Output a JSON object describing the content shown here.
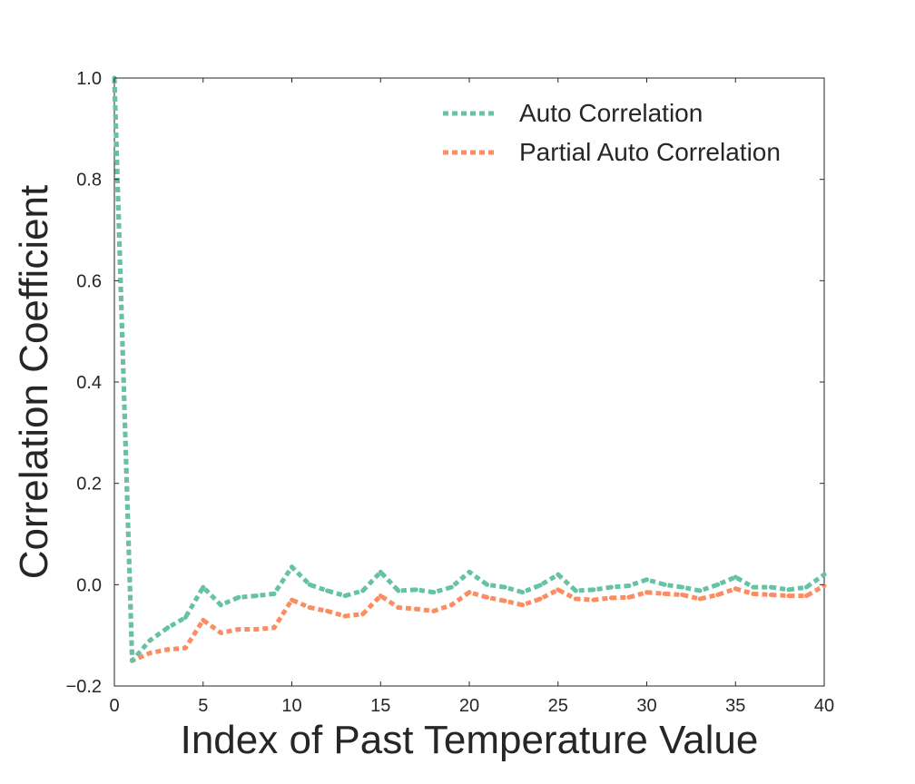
{
  "chart_data": {
    "type": "line",
    "title": "",
    "xlabel": "Index of Past Temperature Value",
    "ylabel": "Correlation Coefficient",
    "xlim": [
      0,
      40
    ],
    "ylim": [
      -0.2,
      1.0
    ],
    "x_ticks": [
      0,
      5,
      10,
      15,
      20,
      25,
      30,
      35,
      40
    ],
    "x_tick_labels": [
      "0",
      "5",
      "10",
      "15",
      "20",
      "25",
      "30",
      "35",
      "40"
    ],
    "y_ticks": [
      -0.2,
      0.0,
      0.2,
      0.4,
      0.6,
      0.8,
      1.0
    ],
    "y_tick_labels": [
      "−0.2",
      "0.0",
      "0.2",
      "0.4",
      "0.6",
      "0.8",
      "1.0"
    ],
    "grid": false,
    "legend_position": "top-right",
    "x": [
      0,
      1,
      2,
      3,
      4,
      5,
      6,
      7,
      8,
      9,
      10,
      11,
      12,
      13,
      14,
      15,
      16,
      17,
      18,
      19,
      20,
      21,
      22,
      23,
      24,
      25,
      26,
      27,
      28,
      29,
      30,
      31,
      32,
      33,
      34,
      35,
      36,
      37,
      38,
      39,
      40
    ],
    "series": [
      {
        "name": "Auto Correlation",
        "color": "#66c2a5",
        "values": [
          1.0,
          -0.15,
          -0.11,
          -0.085,
          -0.065,
          -0.005,
          -0.04,
          -0.025,
          -0.022,
          -0.018,
          0.035,
          0.0,
          -0.012,
          -0.022,
          -0.012,
          0.025,
          -0.012,
          -0.01,
          -0.015,
          -0.005,
          0.025,
          0.0,
          -0.005,
          -0.015,
          -0.001,
          0.02,
          -0.012,
          -0.01,
          -0.005,
          -0.002,
          0.01,
          0.0,
          -0.005,
          -0.012,
          0.0,
          0.015,
          -0.005,
          -0.005,
          -0.01,
          -0.005,
          0.02
        ]
      },
      {
        "name": "Partial Auto Correlation",
        "color": "#fc8d62",
        "values": [
          1.0,
          -0.15,
          -0.135,
          -0.128,
          -0.125,
          -0.07,
          -0.095,
          -0.088,
          -0.088,
          -0.085,
          -0.03,
          -0.045,
          -0.052,
          -0.062,
          -0.058,
          -0.022,
          -0.045,
          -0.048,
          -0.052,
          -0.04,
          -0.015,
          -0.025,
          -0.032,
          -0.04,
          -0.028,
          -0.01,
          -0.028,
          -0.03,
          -0.026,
          -0.025,
          -0.015,
          -0.018,
          -0.02,
          -0.028,
          -0.02,
          -0.008,
          -0.018,
          -0.02,
          -0.022,
          -0.022,
          -0.002
        ]
      }
    ]
  }
}
